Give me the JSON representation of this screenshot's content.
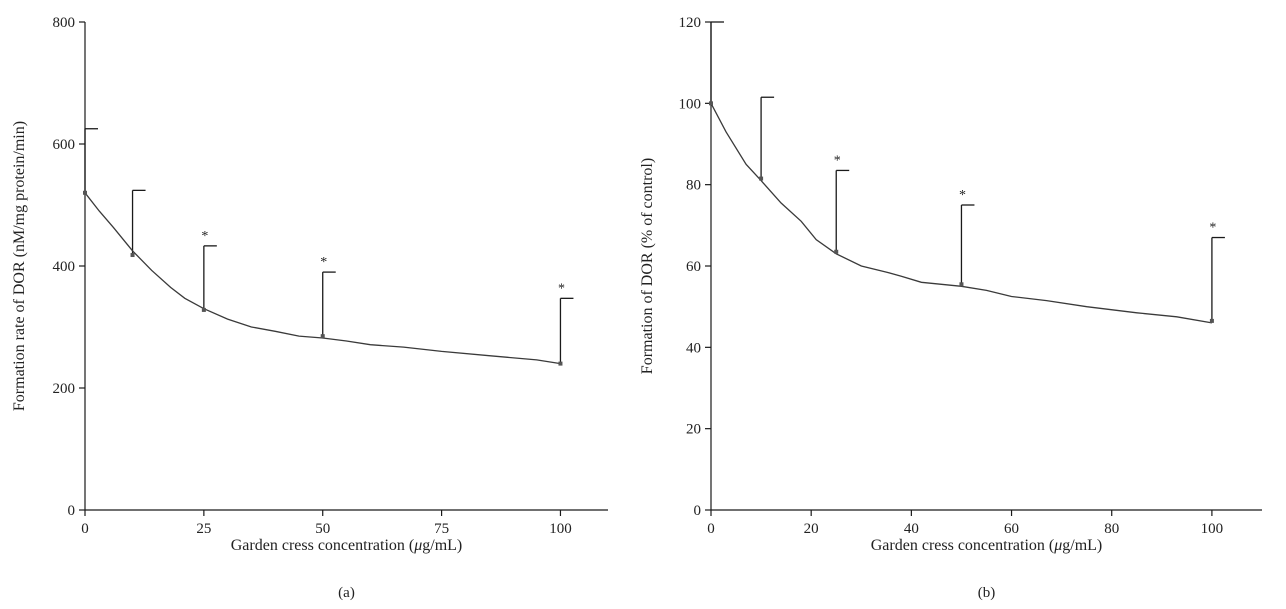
{
  "chart_data": [
    {
      "type": "line",
      "panel_label": "(a)",
      "xlabel_parts": [
        "Garden cress concentration (",
        "μ",
        "g/mL)"
      ],
      "ylabel": "Formation rate of DOR (nM/mg protein/min)",
      "xlim": [
        0,
        110
      ],
      "ylim": [
        0,
        800
      ],
      "xticks": [
        0,
        25,
        50,
        75,
        100
      ],
      "yticks": [
        0,
        200,
        400,
        600,
        800
      ],
      "curve": {
        "x": [
          0,
          3,
          6,
          10,
          14,
          18,
          21,
          25,
          30,
          35,
          40,
          45,
          50,
          55,
          60,
          67,
          75,
          85,
          95,
          100
        ],
        "y": [
          520,
          490,
          463,
          425,
          393,
          365,
          347,
          330,
          313,
          300,
          293,
          285,
          282,
          277,
          271,
          267,
          260,
          253,
          246,
          240
        ]
      },
      "points": {
        "x": [
          0,
          10,
          25,
          50,
          100
        ],
        "y": [
          520,
          418,
          328,
          285,
          240
        ],
        "err_upper": [
          625,
          524,
          433,
          390,
          347
        ],
        "significant": [
          false,
          false,
          true,
          true,
          true
        ]
      },
      "significance_marker": "*"
    },
    {
      "type": "line",
      "panel_label": "(b)",
      "xlabel_parts": [
        "Garden cress concentration (",
        "μ",
        "g/mL)"
      ],
      "ylabel": "Formation of DOR (% of control)",
      "xlim": [
        0,
        110
      ],
      "ylim": [
        0,
        120
      ],
      "xticks": [
        0,
        20,
        40,
        60,
        80,
        100
      ],
      "yticks": [
        0,
        20,
        40,
        60,
        80,
        100,
        120
      ],
      "curve": {
        "x": [
          0,
          3,
          7,
          10,
          14,
          18,
          21,
          25,
          30,
          35,
          38,
          42,
          50,
          55,
          60,
          67,
          75,
          85,
          93,
          100
        ],
        "y": [
          100,
          93,
          85,
          81,
          75.5,
          71,
          66.5,
          63,
          60,
          58.5,
          57.5,
          56,
          55,
          54,
          52.5,
          51.5,
          50,
          48.5,
          47.5,
          46
        ]
      },
      "points": {
        "x": [
          0,
          10,
          25,
          50,
          100
        ],
        "y": [
          100,
          81.5,
          63.5,
          55.5,
          46.5
        ],
        "err_upper": [
          120,
          101.5,
          83.5,
          75,
          67
        ],
        "significant": [
          false,
          false,
          true,
          true,
          true
        ]
      },
      "significance_marker": "*"
    }
  ]
}
